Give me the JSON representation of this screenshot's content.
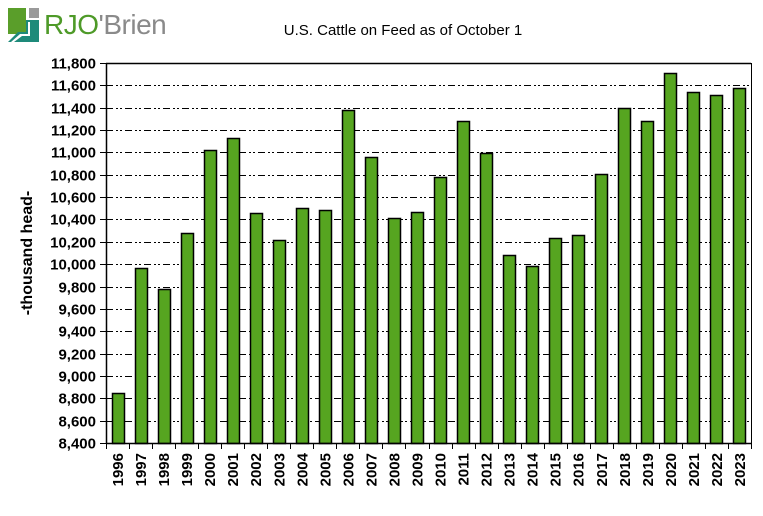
{
  "logo": {
    "brand_prefix": "RJO",
    "brand_suffix": "'Brien",
    "colors": {
      "green": "#5a9e2a",
      "teal": "#1e8a7a",
      "gray": "#9a9a9a"
    }
  },
  "chart_data": {
    "type": "bar",
    "title": "U.S. Cattle on Feed as of October 1",
    "xlabel": "",
    "ylabel": "-thousand head-",
    "ylim": [
      8400,
      11800
    ],
    "yticks": [
      8400,
      8600,
      8800,
      9000,
      9200,
      9400,
      9600,
      9800,
      10000,
      10200,
      10400,
      10600,
      10800,
      11000,
      11200,
      11400,
      11600,
      11800
    ],
    "ytick_labels": [
      "8,400",
      "8,600",
      "8,800",
      "9,000",
      "9,200",
      "9,400",
      "9,600",
      "9,800",
      "10,000",
      "10,200",
      "10,400",
      "10,600",
      "10,800",
      "11,000",
      "11,200",
      "11,400",
      "11,600",
      "11,800"
    ],
    "grid": true,
    "grid_style": "dash-dot",
    "bar_color": "#56a520",
    "bar_edge_color": "#000000",
    "categories": [
      "1996",
      "1997",
      "1998",
      "1999",
      "2000",
      "2001",
      "2002",
      "2003",
      "2004",
      "2005",
      "2006",
      "2007",
      "2008",
      "2009",
      "2010",
      "2011",
      "2012",
      "2013",
      "2014",
      "2015",
      "2016",
      "2017",
      "2018",
      "2019",
      "2020",
      "2021",
      "2022",
      "2023"
    ],
    "values": [
      8845,
      9965,
      9782,
      10280,
      11020,
      11125,
      10455,
      10212,
      10500,
      10482,
      11382,
      10961,
      10409,
      10470,
      10778,
      11277,
      10991,
      10080,
      9982,
      10236,
      10263,
      10809,
      11400,
      11284,
      11714,
      11544,
      11510,
      11580
    ]
  }
}
